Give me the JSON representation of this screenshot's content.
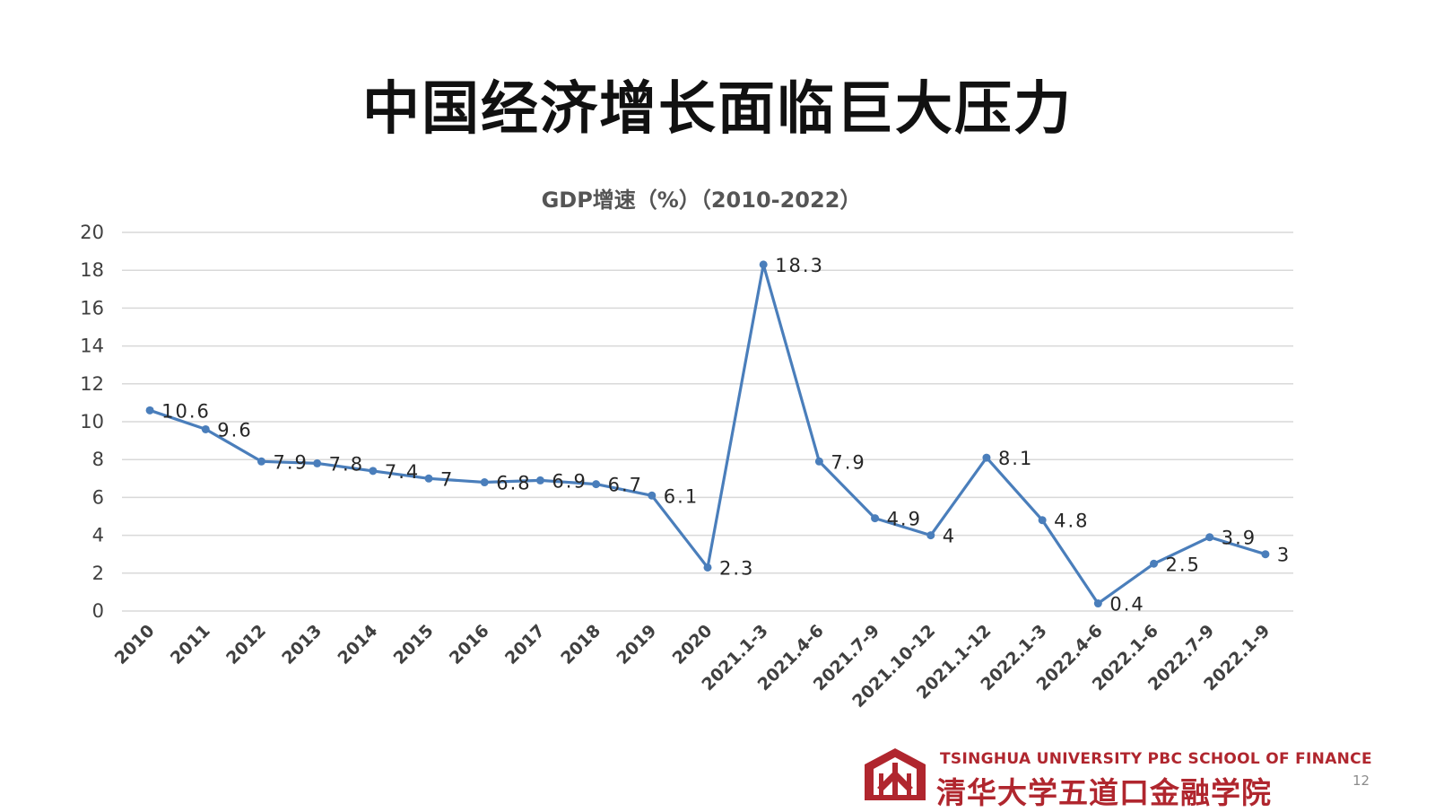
{
  "slide": {
    "title": "中国经济增长面临巨大压力",
    "page_number": "12"
  },
  "footer": {
    "school_en": "TSINGHUA UNIVERSITY PBC SCHOOL OF FINANCE",
    "school_cn": "清华大学五道口金融学院"
  },
  "colors": {
    "series": "#4a7ebb",
    "brand": "#b0262e"
  },
  "chart_data": {
    "type": "line",
    "title": "GDP增速（%）（2010-2022）",
    "categories": [
      "2010",
      "2011",
      "2012",
      "2013",
      "2014",
      "2015",
      "2016",
      "2017",
      "2018",
      "2019",
      "2020",
      "2021.1-3",
      "2021.4-6",
      "2021.7-9",
      "2021.10-12",
      "2021.1-12",
      "2022.1-3",
      "2022.4-6",
      "2022.1-6",
      "2022.7-9",
      "2022.1-9"
    ],
    "values": [
      10.6,
      9.6,
      7.9,
      7.8,
      7.4,
      7,
      6.8,
      6.9,
      6.7,
      6.1,
      2.3,
      18.3,
      7.9,
      4.9,
      4,
      8.1,
      4.8,
      0.4,
      2.5,
      3.9,
      3
    ],
    "data_labels": [
      "10.6",
      "9.6",
      "7.9",
      "7.8",
      "7.4",
      "7",
      "6.8",
      "6.9",
      "6.7",
      "6.1",
      "2.3",
      "18.3",
      "7.9",
      "4.9",
      "4",
      "8.1",
      "4.8",
      "0.4",
      "2.5",
      "3.9",
      "3"
    ],
    "ylim": [
      0,
      20
    ],
    "y_ticks": [
      "0",
      "2",
      "4",
      "6",
      "8",
      "10",
      "12",
      "14",
      "16",
      "18",
      "20"
    ],
    "grid": true,
    "legend": "none"
  }
}
